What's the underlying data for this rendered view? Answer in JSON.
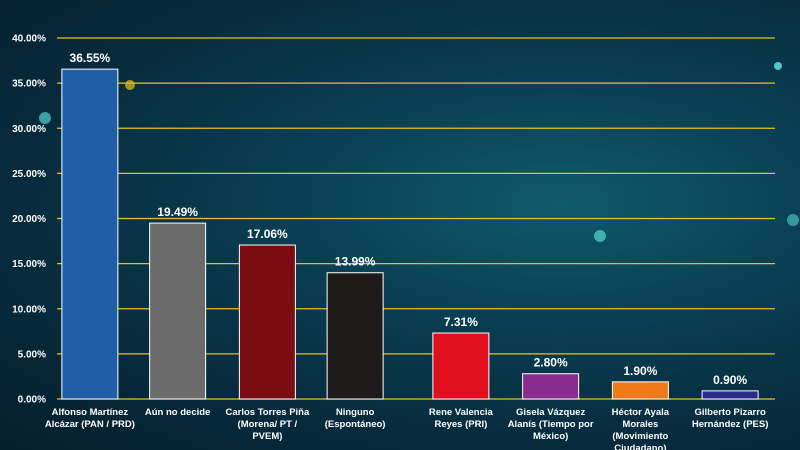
{
  "chart_data": {
    "type": "bar",
    "title": "",
    "xlabel": "",
    "ylabel": "",
    "ylim": [
      0,
      40
    ],
    "yticks": [
      "0.00%",
      "5.00%",
      "10.00%",
      "15.00%",
      "20.00%",
      "25.00%",
      "30.00%",
      "35.00%",
      "40.00%"
    ],
    "grid": true,
    "categories": [
      [
        "Alfonso Martínez",
        "Alcázar (PAN / PRD)"
      ],
      [
        "Aún no decide"
      ],
      [
        "Carlos Torres Piña",
        "(Morena/ PT /",
        "PVEM)"
      ],
      [
        "Ninguno",
        "(Espontáneo)"
      ],
      [
        "Rene Valencia",
        "Reyes (PRI)"
      ],
      [
        "Gisela Vázquez",
        "Alanís (Tiempo por",
        "México)"
      ],
      [
        "Héctor Ayala",
        "Morales",
        "(Movimiento",
        "Ciudadano)"
      ],
      [
        "Gilberto Pizarro",
        "Hernández (PES)"
      ]
    ],
    "values": [
      36.55,
      19.49,
      17.06,
      13.99,
      7.31,
      2.8,
      1.9,
      0.9
    ],
    "value_labels": [
      "36.55%",
      "19.49%",
      "17.06%",
      "13.99%",
      "7.31%",
      "2.80%",
      "1.90%",
      "0.90%"
    ],
    "colors": [
      "#1f5fa8",
      "#6b6b6b",
      "#7a0c12",
      "#1f1a1a",
      "#e2101e",
      "#8a2b8f",
      "#f07a1a",
      "#2a2a8a"
    ],
    "grid_color": "#e8c21c"
  }
}
